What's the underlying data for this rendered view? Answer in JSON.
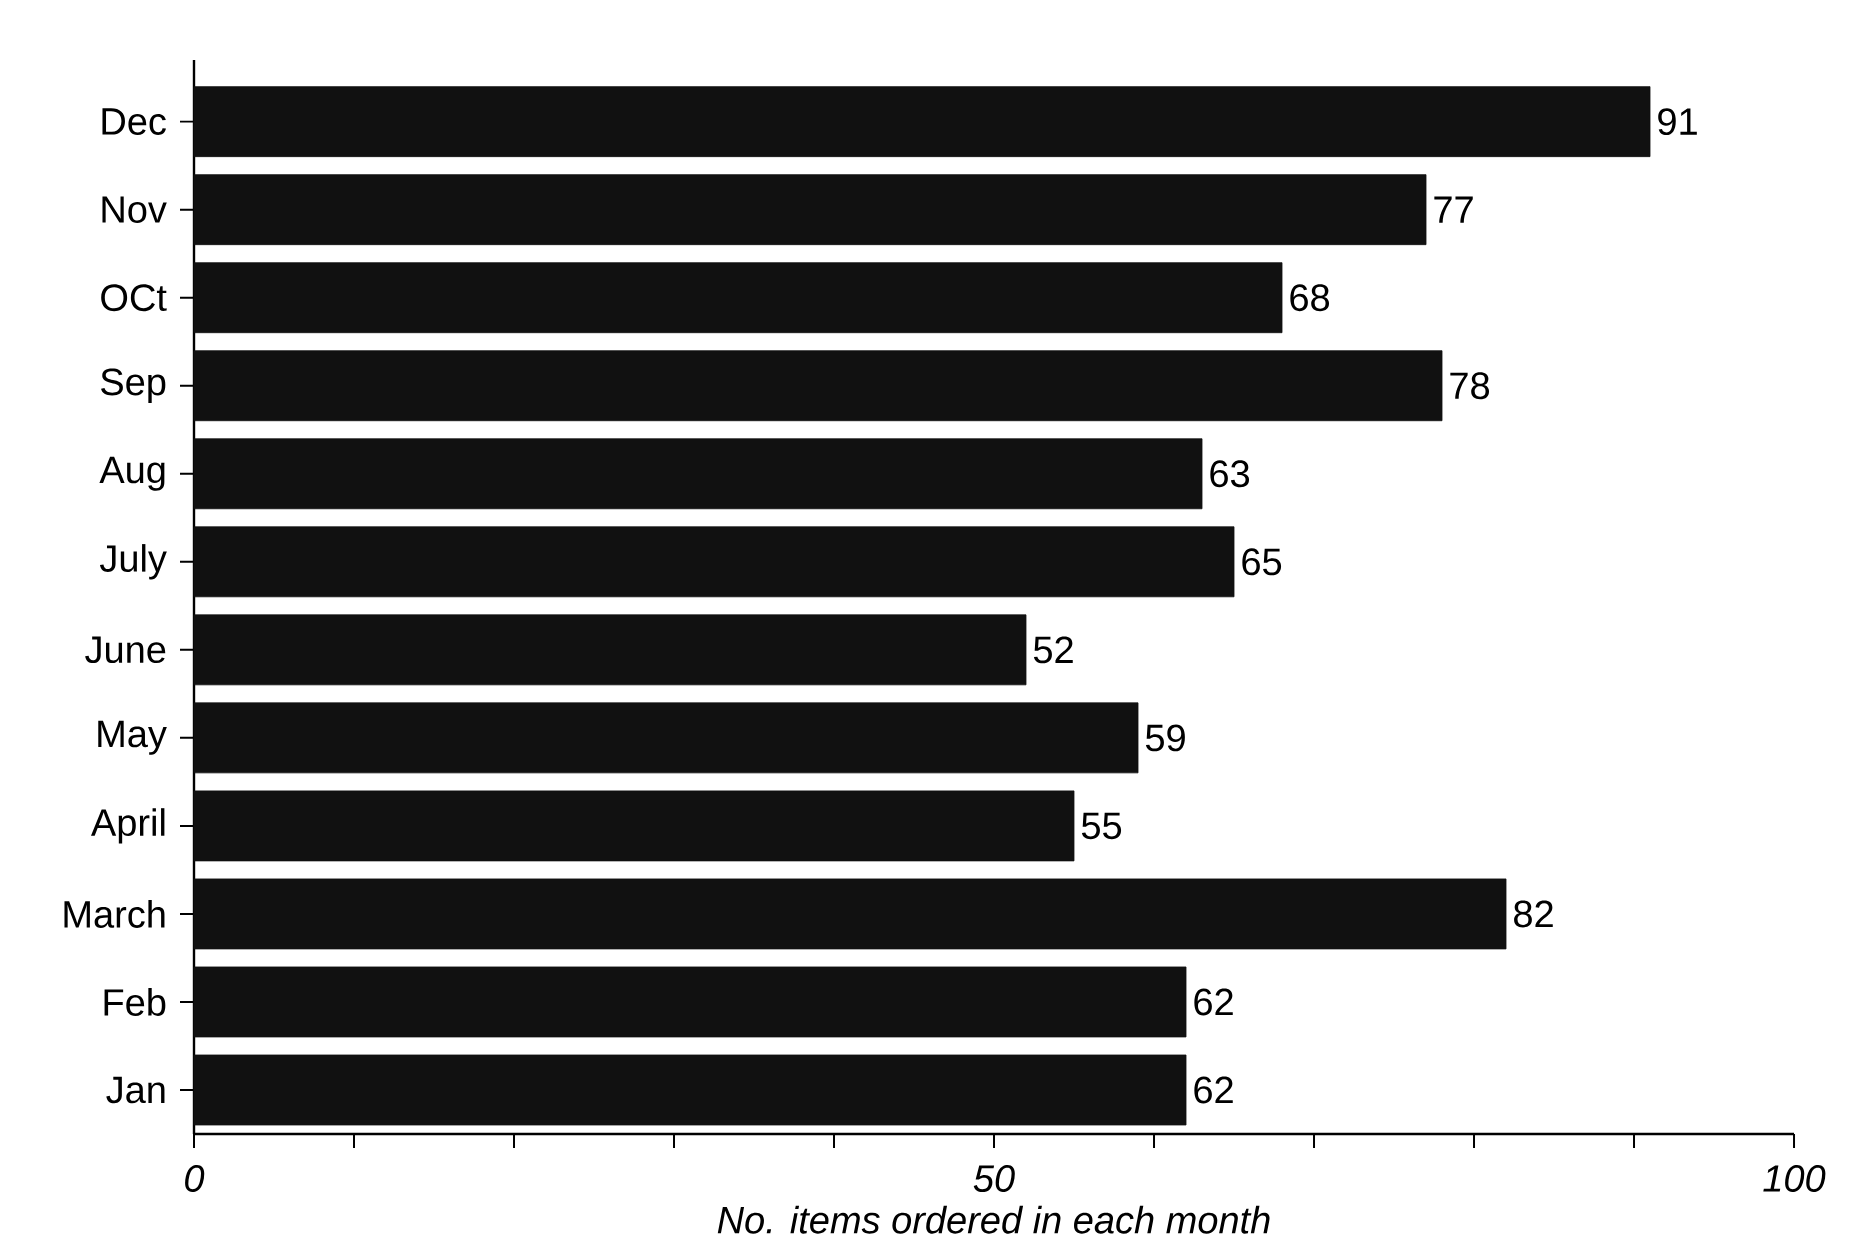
{
  "chart_data": {
    "type": "bar",
    "orientation": "horizontal",
    "xlabel": "No. items ordered in each month",
    "categories": [
      "Dec",
      "Nov",
      "OCt",
      "Sep",
      "Aug",
      "July",
      "June",
      "May",
      "April",
      "March",
      "Feb",
      "Jan"
    ],
    "values": [
      91,
      77,
      68,
      78,
      63,
      65,
      52,
      59,
      55,
      82,
      62,
      62
    ],
    "color": "#111111",
    "data_labels": true,
    "xlim": [
      0,
      100
    ],
    "xticks": [
      0,
      {
        "value": 10,
        "label": null
      },
      {
        "value": 20,
        "label": null
      },
      {
        "value": 30,
        "label": null
      },
      {
        "value": 40,
        "label": null
      },
      50,
      {
        "value": 60,
        "label": null
      },
      {
        "value": 70,
        "label": null
      },
      {
        "value": 80,
        "label": null
      },
      {
        "value": 90,
        "label": null
      },
      100
    ]
  }
}
